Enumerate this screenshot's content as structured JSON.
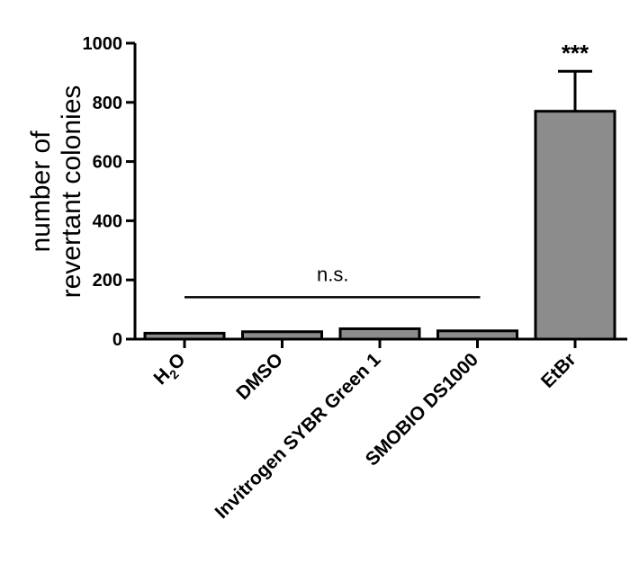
{
  "chart_data": {
    "type": "bar",
    "title": "",
    "ylabel_lines": [
      "number of",
      "revertant colonies"
    ],
    "ylim": [
      0,
      1000
    ],
    "yticks": [
      0,
      200,
      400,
      600,
      800,
      1000
    ],
    "ytick_labels": [
      "0",
      "200",
      "400",
      "600",
      "800",
      "1000"
    ],
    "categories": [
      {
        "label": "H",
        "sub": "2",
        "suffix": "O"
      },
      {
        "label": "DMSO"
      },
      {
        "label": "Invitrogen SYBR Green 1"
      },
      {
        "label": "SMOBIO DS1000"
      },
      {
        "label": "EtBr"
      }
    ],
    "values": [
      20,
      25,
      35,
      28,
      770
    ],
    "error_upper": [
      null,
      null,
      null,
      null,
      905
    ],
    "bar_color": "#8c8c8c",
    "annotations": {
      "ns_label": "n.s.",
      "ns_span": [
        "H2O",
        "SMOBIO DS1000"
      ],
      "ns_level": 175,
      "star_label": "***",
      "star_category": "EtBr"
    }
  }
}
